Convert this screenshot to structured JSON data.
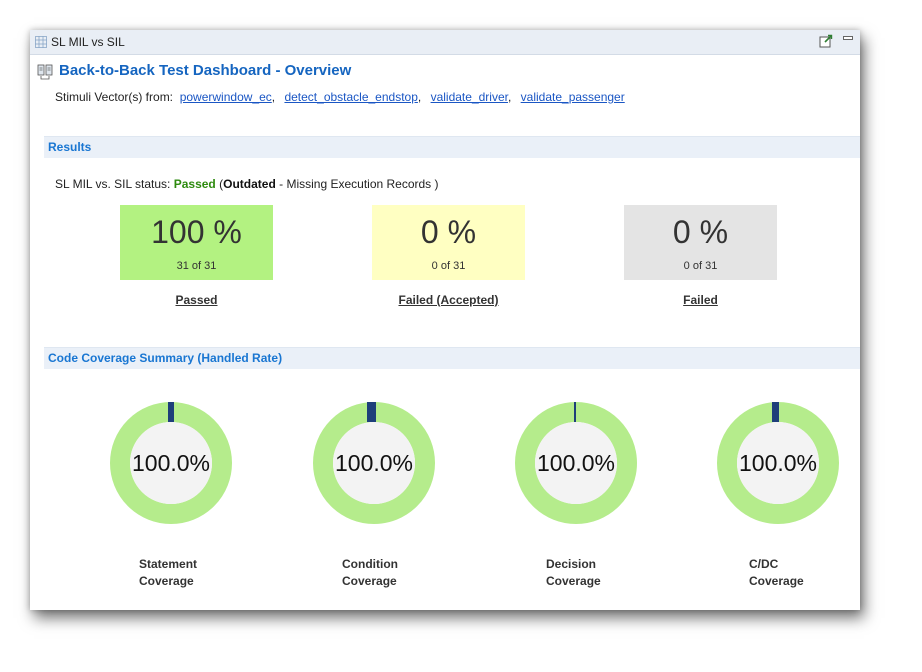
{
  "tab": {
    "title": "SL MIL vs SIL",
    "icon": "grid-icon",
    "actions": [
      "export-icon",
      "minimize-icon"
    ]
  },
  "header": {
    "title": "Back-to-Back Test Dashboard - Overview",
    "stimuli_prefix": "Stimuli Vector(s) from:",
    "stimuli_links": [
      "powerwindow_ec",
      "detect_obstacle_endstop",
      "validate_driver",
      "validate_passenger"
    ],
    "separator": ","
  },
  "results": {
    "section_title": "Results",
    "status_prefix": "SL MIL vs. SIL status:",
    "status_value": "Passed",
    "paren_open": "(",
    "outdated": "Outdated",
    "outdated_detail": "-  Missing Execution Records )",
    "boxes": [
      {
        "percent": "100 %",
        "count": "31 of 31",
        "label": "Passed",
        "color": "#b3f281"
      },
      {
        "percent": "0 %",
        "count": "0 of 31",
        "label": "Failed (Accepted)",
        "color": "#ffffc2"
      },
      {
        "percent": "0 %",
        "count": "0 of 31",
        "label": "Failed",
        "color": "#e4e4e4"
      }
    ]
  },
  "coverage": {
    "section_title": "Code Coverage Summary (Handled Rate)",
    "ring_color": "#b5ec8c",
    "marker_color": "#1e3f7a",
    "items": [
      {
        "value": "100.0%",
        "label_line1": "Statement",
        "label_line2": "Coverage",
        "fraction": 1.0
      },
      {
        "value": "100.0%",
        "label_line1": "Condition",
        "label_line2": "Coverage",
        "fraction": 1.0
      },
      {
        "value": "100.0%",
        "label_line1": "Decision",
        "label_line2": "Coverage",
        "fraction": 1.0
      },
      {
        "value": "100.0%",
        "label_line1": "C/DC",
        "label_line2": "Coverage",
        "fraction": 1.0
      }
    ]
  }
}
